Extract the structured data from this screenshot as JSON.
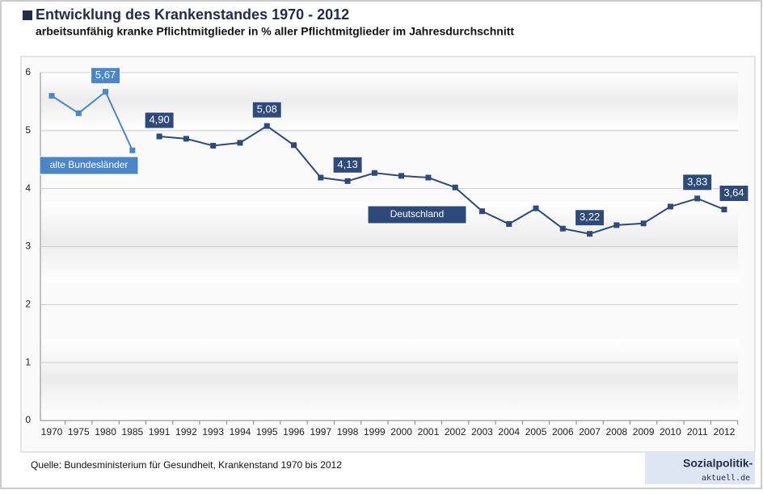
{
  "chart_data": {
    "type": "line",
    "title": "Entwicklung des Krankenstandes 1970 - 2012",
    "subtitle": "arbeitsunfähig kranke Pflichtmitglieder in % aller Pflichtmitglieder im Jahresdurchschnitt",
    "source": "Quelle: Bundesministerium für Gesundheit, Krankenstand 1970 bis 2012",
    "logo": [
      "Sozialpolitik-",
      "aktuell.de"
    ],
    "categories": [
      "1970",
      "1975",
      "1980",
      "1985",
      "1991",
      "1992",
      "1993",
      "1994",
      "1995",
      "1996",
      "1997",
      "1998",
      "1999",
      "2000",
      "2001",
      "2002",
      "2003",
      "2004",
      "2005",
      "2006",
      "2007",
      "2008",
      "2009",
      "2010",
      "2011",
      "2012"
    ],
    "series": [
      {
        "name": "alte Bundesländer",
        "color": "#4a86c8",
        "values": [
          5.6,
          5.3,
          5.67,
          4.66,
          null,
          null,
          null,
          null,
          null,
          null,
          null,
          null,
          null,
          null,
          null,
          null,
          null,
          null,
          null,
          null,
          null,
          null,
          null,
          null,
          null,
          null
        ],
        "value_labels": [
          null,
          null,
          "5,67",
          null,
          null,
          null,
          null,
          null,
          null,
          null,
          null,
          null,
          null,
          null,
          null,
          null,
          null,
          null,
          null,
          null,
          null,
          null,
          null,
          null,
          null,
          null
        ]
      },
      {
        "name": "Deutschland",
        "color": "#2e4a7a",
        "values": [
          null,
          null,
          null,
          null,
          4.9,
          4.86,
          4.74,
          4.79,
          5.08,
          4.75,
          4.19,
          4.13,
          4.27,
          4.22,
          4.19,
          4.02,
          3.61,
          3.39,
          3.66,
          3.31,
          3.22,
          3.37,
          3.4,
          3.69,
          3.83,
          3.64
        ],
        "value_labels": [
          null,
          null,
          null,
          null,
          "4,90",
          null,
          null,
          null,
          "5,08",
          null,
          null,
          "4,13",
          null,
          null,
          null,
          null,
          null,
          null,
          null,
          null,
          "3,22",
          null,
          null,
          null,
          "3,83",
          "3,64"
        ]
      }
    ],
    "ylim": [
      0,
      6
    ],
    "yticks": [
      0,
      1,
      2,
      3,
      4,
      5,
      6
    ],
    "grid": true
  }
}
